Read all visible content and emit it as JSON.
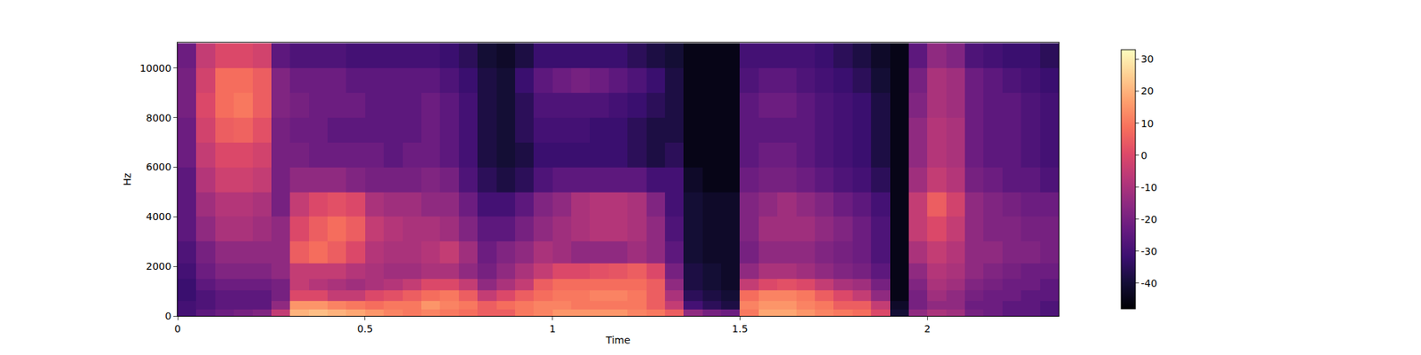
{
  "chart_data": {
    "type": "heatmap",
    "xlabel": "Time",
    "ylabel": "Hz",
    "color": "magma",
    "xlim": [
      0,
      2.35
    ],
    "xticks": [
      0,
      0.5,
      1,
      1.5,
      2
    ],
    "ylim": [
      0,
      11025
    ],
    "yticks": [
      0,
      2000,
      4000,
      6000,
      8000,
      10000
    ],
    "colorbar": {
      "range": [
        -48,
        33
      ],
      "ticks": [
        -40,
        -30,
        -20,
        -10,
        0,
        10,
        20,
        30
      ]
    },
    "x": [
      0.025,
      0.075,
      0.125,
      0.175,
      0.225,
      0.275,
      0.325,
      0.375,
      0.425,
      0.475,
      0.525,
      0.575,
      0.625,
      0.675,
      0.725,
      0.775,
      0.825,
      0.875,
      0.925,
      0.975,
      1.025,
      1.075,
      1.125,
      1.175,
      1.225,
      1.275,
      1.325,
      1.375,
      1.425,
      1.475,
      1.525,
      1.575,
      1.625,
      1.675,
      1.725,
      1.775,
      1.825,
      1.875,
      1.925,
      1.975,
      2.025,
      2.075,
      2.125,
      2.175,
      2.225,
      2.275,
      2.325
    ],
    "y": [
      100,
      400,
      800,
      1250,
      1750,
      2500,
      3500,
      4500,
      5500,
      6500,
      7500,
      8500,
      9500,
      10500
    ],
    "values": [
      [
        -30,
        -30,
        -32,
        -32,
        -30,
        -28,
        -25,
        -25,
        -25,
        -22,
        -22,
        -20,
        -20,
        -22
      ],
      [
        -25,
        -28,
        -28,
        -25,
        -22,
        -20,
        -15,
        -12,
        -8,
        -5,
        -2,
        0,
        -2,
        -5
      ],
      [
        -22,
        -25,
        -25,
        -22,
        -18,
        -15,
        -10,
        -8,
        -3,
        0,
        5,
        8,
        8,
        0
      ],
      [
        -20,
        -25,
        -25,
        -22,
        -18,
        -15,
        -10,
        -8,
        -3,
        0,
        6,
        10,
        8,
        0
      ],
      [
        -18,
        -25,
        -25,
        -22,
        -18,
        -15,
        -12,
        -10,
        -5,
        -2,
        2,
        5,
        5,
        -2
      ],
      [
        -5,
        -15,
        -20,
        -20,
        -15,
        -15,
        -15,
        -20,
        -20,
        -20,
        -20,
        -18,
        -18,
        -25
      ],
      [
        20,
        15,
        0,
        -5,
        -5,
        5,
        0,
        -5,
        -15,
        -20,
        -22,
        -20,
        -22,
        -28
      ],
      [
        22,
        15,
        0,
        -8,
        -5,
        8,
        5,
        0,
        -15,
        -22,
        -22,
        -22,
        -22,
        -28
      ],
      [
        20,
        12,
        -5,
        -10,
        -5,
        5,
        8,
        2,
        -15,
        -22,
        -25,
        -22,
        -22,
        -28
      ],
      [
        18,
        10,
        -5,
        -12,
        -8,
        0,
        5,
        0,
        -18,
        -22,
        -25,
        -22,
        -25,
        -30
      ],
      [
        15,
        8,
        0,
        -10,
        -10,
        -8,
        -5,
        -10,
        -20,
        -22,
        -25,
        -25,
        -25,
        -30
      ],
      [
        12,
        10,
        2,
        -8,
        -12,
        -10,
        -8,
        -12,
        -20,
        -25,
        -25,
        -25,
        -25,
        -30
      ],
      [
        10,
        10,
        5,
        -5,
        -12,
        -10,
        -10,
        -12,
        -20,
        -22,
        -25,
        -25,
        -25,
        -30
      ],
      [
        12,
        15,
        8,
        0,
        -10,
        -8,
        -10,
        -15,
        -18,
        -22,
        -22,
        -22,
        -25,
        -30
      ],
      [
        10,
        12,
        10,
        0,
        -10,
        -5,
        -12,
        -15,
        -20,
        -25,
        -25,
        -25,
        -28,
        -32
      ],
      [
        8,
        10,
        5,
        -5,
        -15,
        -12,
        -18,
        -22,
        -28,
        -30,
        -30,
        -30,
        -32,
        -35
      ],
      [
        5,
        5,
        -5,
        -15,
        -20,
        -22,
        -25,
        -30,
        -35,
        -38,
        -38,
        -38,
        -38,
        -40
      ],
      [
        5,
        8,
        0,
        -10,
        -15,
        -18,
        -25,
        -30,
        -38,
        -40,
        -40,
        -40,
        -40,
        -42
      ],
      [
        10,
        10,
        5,
        -5,
        -10,
        -15,
        -20,
        -25,
        -35,
        -38,
        -35,
        -35,
        -32,
        -38
      ],
      [
        12,
        12,
        8,
        5,
        -5,
        -10,
        -15,
        -18,
        -28,
        -32,
        -30,
        -28,
        -25,
        -32
      ],
      [
        15,
        12,
        10,
        8,
        0,
        -12,
        -12,
        -15,
        -25,
        -32,
        -30,
        -28,
        -22,
        -32
      ],
      [
        15,
        10,
        10,
        8,
        0,
        -15,
        -10,
        -10,
        -25,
        -32,
        -30,
        -28,
        -20,
        -32
      ],
      [
        15,
        10,
        12,
        8,
        2,
        -15,
        -8,
        -8,
        -25,
        -32,
        -32,
        -28,
        -22,
        -32
      ],
      [
        15,
        10,
        12,
        8,
        3,
        -15,
        -8,
        -8,
        -25,
        -32,
        -32,
        -30,
        -25,
        -32
      ],
      [
        12,
        10,
        10,
        8,
        5,
        -12,
        -10,
        -10,
        -25,
        -35,
        -35,
        -32,
        -28,
        -35
      ],
      [
        10,
        5,
        5,
        5,
        0,
        -15,
        -15,
        -18,
        -30,
        -38,
        -38,
        -35,
        -32,
        -38
      ],
      [
        5,
        -5,
        -10,
        -15,
        -20,
        -25,
        -28,
        -30,
        -30,
        -35,
        -38,
        -38,
        -38,
        -40
      ],
      [
        -15,
        -30,
        -35,
        -38,
        -38,
        -40,
        -40,
        -40,
        -42,
        -45,
        -45,
        -45,
        -45,
        -45
      ],
      [
        -20,
        -35,
        -38,
        -40,
        -40,
        -42,
        -42,
        -42,
        -45,
        -45,
        -45,
        -45,
        -45,
        -45
      ],
      [
        -22,
        -38,
        -40,
        -42,
        -42,
        -42,
        -42,
        -42,
        -45,
        -45,
        -45,
        -45,
        -45,
        -45
      ],
      [
        10,
        12,
        8,
        -5,
        -15,
        -20,
        -18,
        -18,
        -22,
        -25,
        -25,
        -25,
        -28,
        -30
      ],
      [
        18,
        15,
        12,
        0,
        -10,
        -15,
        -12,
        -15,
        -20,
        -22,
        -25,
        -22,
        -25,
        -30
      ],
      [
        18,
        15,
        12,
        2,
        -10,
        -15,
        -12,
        -12,
        -20,
        -22,
        -25,
        -22,
        -25,
        -30
      ],
      [
        15,
        12,
        10,
        0,
        -12,
        -15,
        -12,
        -15,
        -22,
        -25,
        -25,
        -25,
        -28,
        -30
      ],
      [
        12,
        10,
        5,
        -5,
        -15,
        -18,
        -15,
        -18,
        -25,
        -28,
        -28,
        -28,
        -30,
        -32
      ],
      [
        10,
        5,
        0,
        -10,
        -18,
        -20,
        -18,
        -22,
        -28,
        -30,
        -30,
        -30,
        -32,
        -35
      ],
      [
        8,
        5,
        -5,
        -12,
        -20,
        -22,
        -22,
        -25,
        -30,
        -32,
        -32,
        -32,
        -35,
        -38
      ],
      [
        0,
        -5,
        -15,
        -20,
        -25,
        -28,
        -28,
        -30,
        -35,
        -38,
        -38,
        -38,
        -40,
        -42
      ],
      [
        -40,
        -42,
        -45,
        -45,
        -45,
        -45,
        -45,
        -45,
        -45,
        -45,
        -45,
        -45,
        -45,
        -45
      ],
      [
        -15,
        -20,
        -20,
        -18,
        -15,
        -10,
        -5,
        -5,
        -12,
        -15,
        -15,
        -18,
        -20,
        -25
      ],
      [
        -10,
        -15,
        -12,
        -10,
        -8,
        -5,
        0,
        5,
        -5,
        -8,
        -8,
        -10,
        -10,
        -15
      ],
      [
        -12,
        -15,
        -15,
        -12,
        -10,
        -8,
        -5,
        -2,
        -8,
        -10,
        -10,
        -12,
        -12,
        -18
      ],
      [
        -20,
        -22,
        -20,
        -18,
        -15,
        -15,
        -15,
        -15,
        -20,
        -22,
        -22,
        -22,
        -22,
        -28
      ],
      [
        -22,
        -22,
        -22,
        -20,
        -18,
        -15,
        -18,
        -18,
        -22,
        -25,
        -25,
        -25,
        -25,
        -30
      ],
      [
        -25,
        -25,
        -22,
        -22,
        -20,
        -18,
        -18,
        -20,
        -25,
        -25,
        -25,
        -25,
        -28,
        -32
      ],
      [
        -25,
        -25,
        -25,
        -22,
        -22,
        -18,
        -20,
        -22,
        -25,
        -28,
        -28,
        -28,
        -30,
        -32
      ],
      [
        -28,
        -28,
        -25,
        -25,
        -22,
        -20,
        -20,
        -22,
        -28,
        -30,
        -30,
        -30,
        -32,
        -35
      ]
    ]
  }
}
